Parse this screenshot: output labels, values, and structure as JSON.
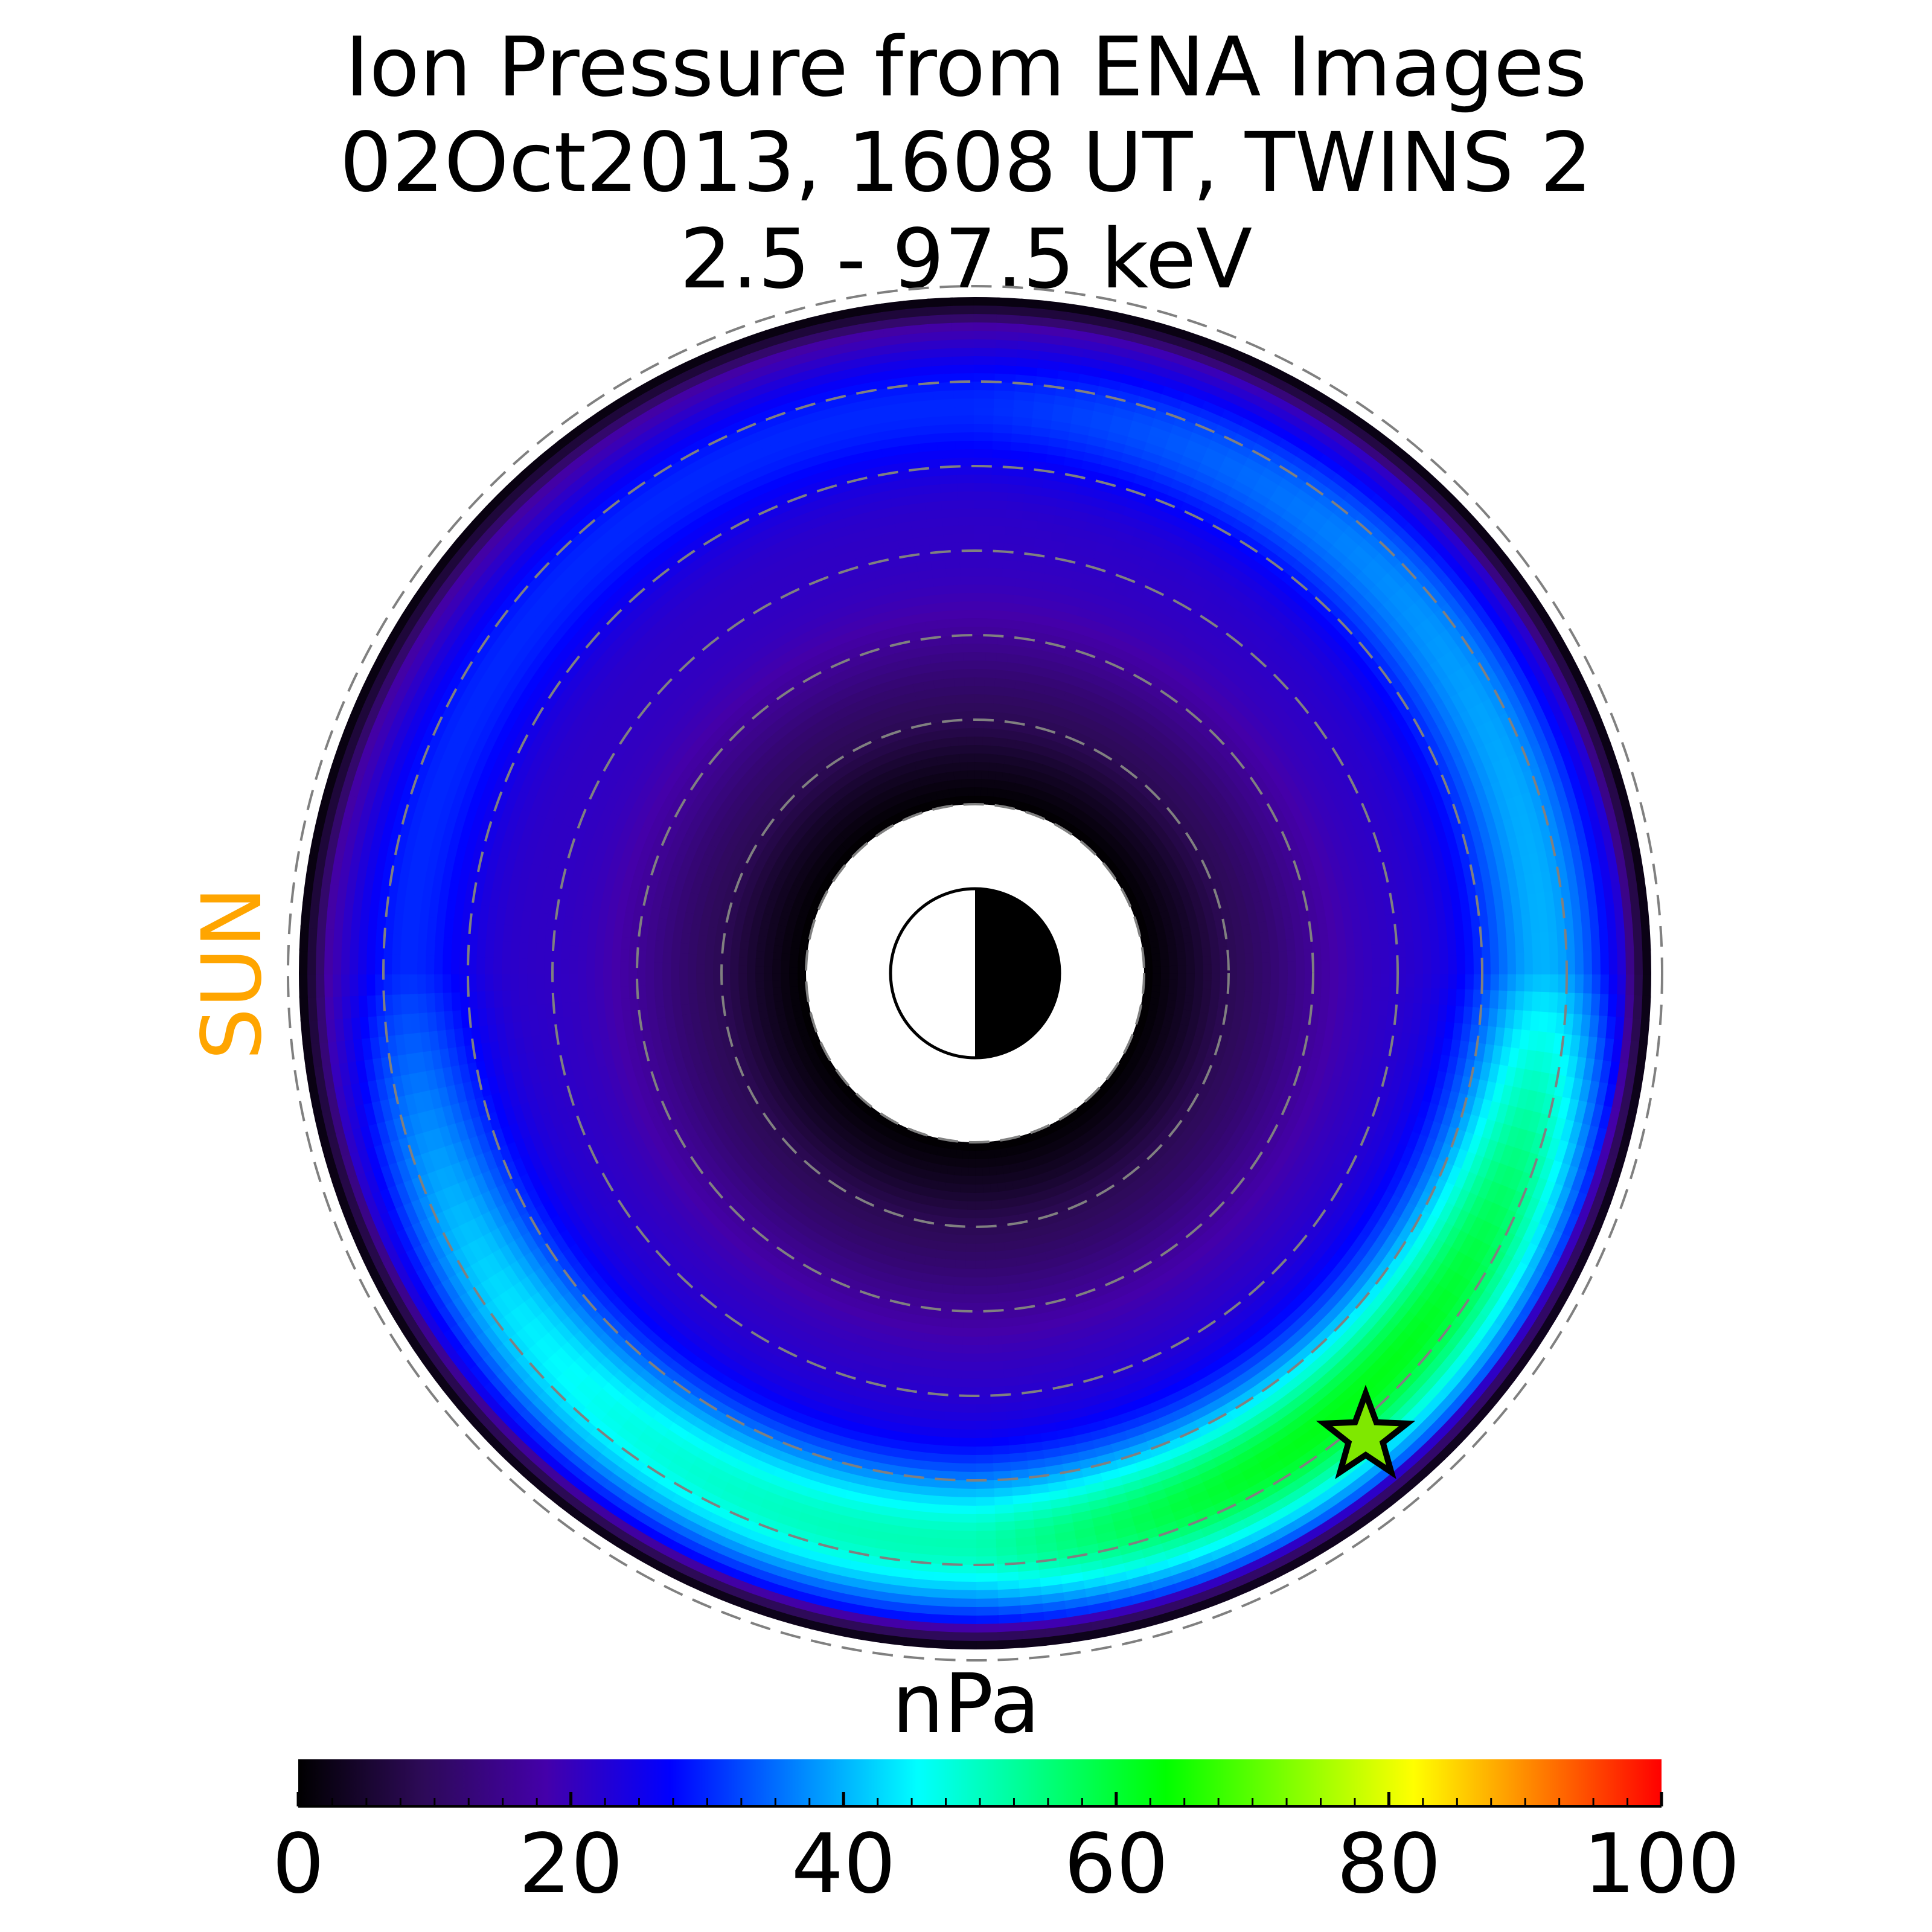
{
  "chart_data": {
    "type": "heatmap",
    "title_lines": [
      "Ion Pressure from  ENA Images",
      "02Oct2013, 1608 UT,  TWINS 2",
      "2.5 - 97.5 keV"
    ],
    "sun_label": "SUN",
    "colorbar": {
      "label": "nPa",
      "range": [
        0,
        100
      ],
      "ticks": [
        0,
        20,
        40,
        60,
        80,
        100
      ],
      "tick_labels": [
        "0",
        "20",
        "40",
        "60",
        "80",
        "100"
      ],
      "minor_tick_step": 2.5
    },
    "projection": "equatorial polar map, sun direction to the left",
    "region_radii": {
      "inner_edge": 2,
      "outer_edge": 8
    },
    "dashed_circles": [
      2,
      3,
      4,
      5,
      6,
      7,
      8
    ],
    "pressure_profile": {
      "description": "Ring-current ion pressure, nPa; enhanced on the dusk side / post-midnight",
      "peak_pressure": 67,
      "peak_radius": 6.8,
      "background_pressure": 14
    },
    "marker": {
      "symbol": "star",
      "position": "dusk-side outer ring, near 6.9 radius"
    },
    "earth_symbol": "half-lit disk, day side left",
    "colors": {
      "title": "#000000",
      "sun": "#ffa500",
      "dashed_circle": "#808080",
      "colormap_stops": [
        "#000000",
        "#2d0a57",
        "#4400aa",
        "#0000ff",
        "#0080ff",
        "#00ffff",
        "#00ff80",
        "#00ff00",
        "#80ff00",
        "#ffff00",
        "#ff8000",
        "#ff0000"
      ]
    }
  }
}
